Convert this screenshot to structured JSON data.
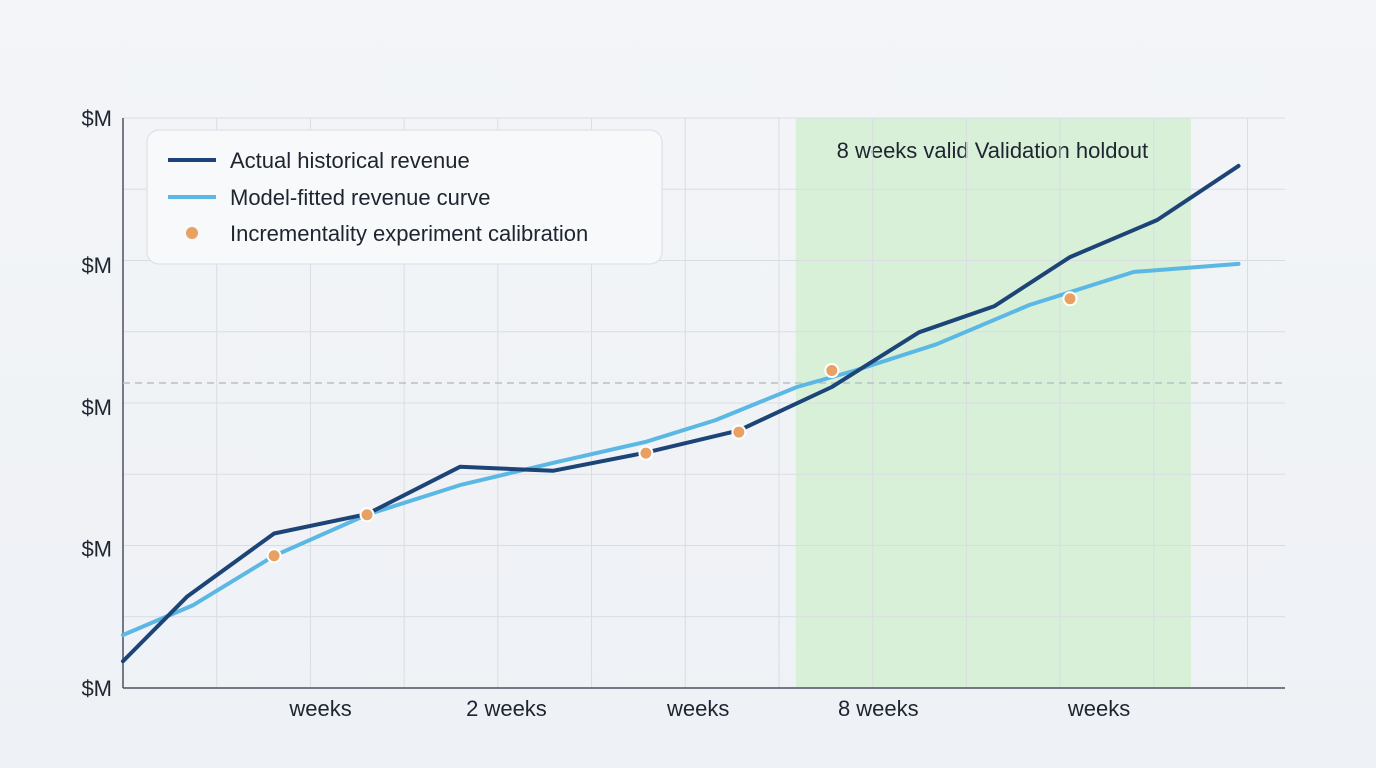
{
  "chart_data": {
    "type": "line",
    "title": "",
    "xlabel": "",
    "ylabel": "",
    "xlim": [
      0,
      100
    ],
    "ylim": [
      0,
      100
    ],
    "grid": true,
    "legend_position": "top-left",
    "x_ticks": [
      {
        "x": 17,
        "label": "weeks"
      },
      {
        "x": 33,
        "label": "2 weeks"
      },
      {
        "x": 49.5,
        "label": "weeks"
      },
      {
        "x": 65,
        "label": "8 weeks"
      },
      {
        "x": 84,
        "label": "weeks"
      }
    ],
    "y_ticks": [
      {
        "y": 0,
        "label": "$M"
      },
      {
        "y": 24.5,
        "label": "$M"
      },
      {
        "y": 49.3,
        "label": "$M"
      },
      {
        "y": 74.2,
        "label": "$M"
      },
      {
        "y": 100,
        "label": "$M"
      }
    ],
    "reference_line_y": 53.5,
    "holdout": {
      "x_start": 57.9,
      "x_end": 91.9,
      "label": "8 weeks valid Validation holdout"
    },
    "series": [
      {
        "name": "Actual historical revenue",
        "color": "#1c4477",
        "points": [
          [
            0,
            4.7
          ],
          [
            5.5,
            16.0
          ],
          [
            13,
            27.1
          ],
          [
            21,
            30.5
          ],
          [
            29,
            38.8
          ],
          [
            37,
            38.1
          ],
          [
            45,
            41.3
          ],
          [
            53,
            45.2
          ],
          [
            61,
            52.8
          ],
          [
            68.5,
            62.4
          ],
          [
            75,
            67.0
          ],
          [
            81.5,
            75.6
          ],
          [
            89,
            82.1
          ],
          [
            96,
            91.6
          ]
        ]
      },
      {
        "name": "Model-fitted revenue curve",
        "color": "#5bb7e3",
        "points": [
          [
            0,
            9.3
          ],
          [
            6,
            14.5
          ],
          [
            13,
            23.2
          ],
          [
            21,
            30.4
          ],
          [
            29,
            35.6
          ],
          [
            37,
            39.5
          ],
          [
            45,
            43.2
          ],
          [
            51,
            47.0
          ],
          [
            58,
            52.8
          ],
          [
            63,
            55.7
          ],
          [
            70,
            60.3
          ],
          [
            78,
            67.2
          ],
          [
            87,
            73.0
          ],
          [
            96,
            74.4
          ]
        ]
      }
    ],
    "calibration_points": {
      "name": "Incrementality experiment calibration",
      "color": "#e8a063",
      "points": [
        [
          13,
          23.2
        ],
        [
          21,
          30.4
        ],
        [
          45,
          41.2
        ],
        [
          53,
          44.9
        ],
        [
          61,
          55.7
        ],
        [
          81.5,
          68.3
        ]
      ]
    }
  }
}
